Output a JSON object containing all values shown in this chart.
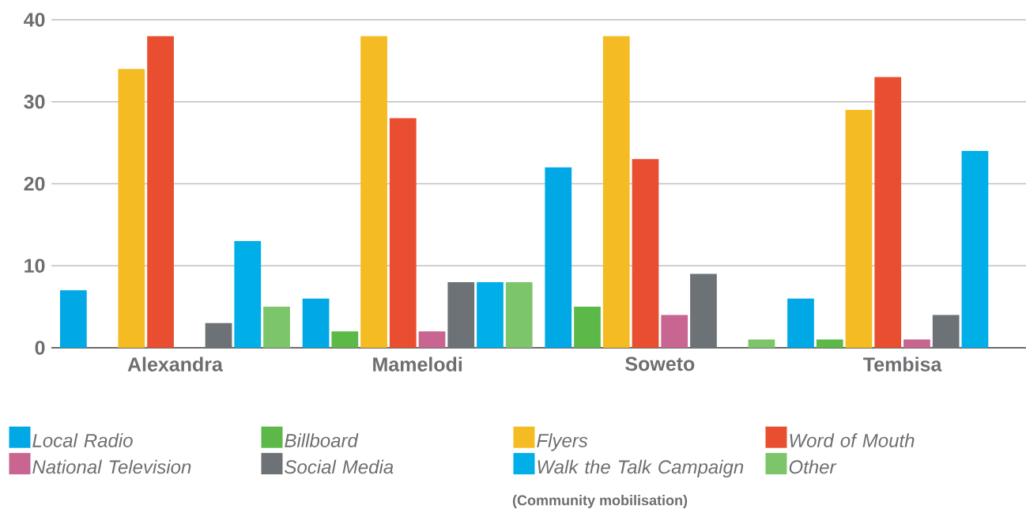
{
  "chart_data": {
    "type": "bar",
    "categories": [
      "Alexandra",
      "Mamelodi",
      "Soweto",
      "Tembisa"
    ],
    "series": [
      {
        "name": "Local Radio",
        "color": "#00a9e6",
        "values": [
          7,
          6,
          22,
          6
        ]
      },
      {
        "name": "Billboard",
        "color": "#5cb947",
        "values": [
          0,
          2,
          5,
          1
        ]
      },
      {
        "name": "Flyers",
        "color": "#f5bb23",
        "values": [
          34,
          38,
          38,
          29
        ]
      },
      {
        "name": "Word of Mouth",
        "color": "#e84e2f",
        "values": [
          38,
          28,
          23,
          33
        ]
      },
      {
        "name": "National Television",
        "color": "#c86590",
        "values": [
          0,
          2,
          4,
          1
        ]
      },
      {
        "name": "Social Media",
        "color": "#6d7276",
        "values": [
          3,
          8,
          9,
          4
        ]
      },
      {
        "name": "Walk the Talk Campaign",
        "color": "#00aee8",
        "values": [
          13,
          8,
          0,
          24
        ]
      },
      {
        "name": "Other",
        "color": "#7dc56a",
        "values": [
          5,
          8,
          1,
          0
        ]
      }
    ],
    "ylim": [
      0,
      40
    ],
    "yticks": [
      0,
      10,
      20,
      30,
      40
    ],
    "grid": "y",
    "legend": "bottom",
    "annotations": [
      "(Community mobilisation)"
    ]
  }
}
